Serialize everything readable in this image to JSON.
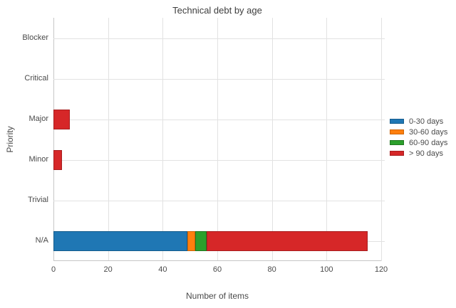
{
  "chart_data": {
    "type": "bar",
    "orientation": "horizontal",
    "stacked": true,
    "title": "Technical debt by age",
    "xlabel": "Number of items",
    "ylabel": "Priority",
    "categories": [
      "Blocker",
      "Critical",
      "Major",
      "Minor",
      "Trivial",
      "N/A"
    ],
    "series": [
      {
        "name": "0-30 days",
        "color": "#1f77b4",
        "border_color": "#155d8d",
        "values": [
          0,
          0,
          0,
          0,
          0,
          49
        ]
      },
      {
        "name": "30-60 days",
        "color": "#ff7f0e",
        "border_color": "#cc6508",
        "values": [
          0,
          0,
          0,
          0,
          0,
          3
        ]
      },
      {
        "name": "60-90 days",
        "color": "#2ca02c",
        "border_color": "#217821",
        "values": [
          0,
          0,
          0,
          0,
          0,
          4
        ]
      },
      {
        "name": "> 90 days",
        "color": "#d62728",
        "border_color": "#a81e1f",
        "values": [
          0,
          0,
          6,
          3,
          0,
          59
        ]
      }
    ],
    "x_ticks": [
      0,
      20,
      40,
      60,
      80,
      100,
      120
    ],
    "xlim": [
      0,
      120
    ],
    "grid": true,
    "legend_position": "right",
    "colors": {
      "grid": "#e2e2e2",
      "axis": "#c6c6c6",
      "text": "#4a4a4a"
    }
  }
}
